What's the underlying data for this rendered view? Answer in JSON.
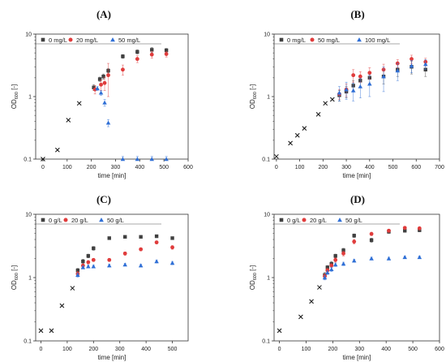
{
  "chart_data": [
    {
      "type": "scatter",
      "panel_label": "(A)",
      "xlabel": "time [min]",
      "ylabel": "OD",
      "ylabel_sub": "600",
      "ylabel_suffix": " [-]",
      "xlim": [
        -30,
        600
      ],
      "ylim": [
        0.1,
        10
      ],
      "yscale": "log",
      "xticks": [
        0,
        100,
        200,
        300,
        400,
        500,
        600
      ],
      "yticks": [
        0.1,
        1,
        10
      ],
      "ytick_labels": [
        "0.1",
        "1",
        "10"
      ],
      "legend_placement": "top-left",
      "colors": {
        "s0": "#404040",
        "s1": "#e03c3c",
        "s2": "#2f6fd6",
        "pre": "#111111"
      },
      "preculture": {
        "x": [
          0,
          60,
          105,
          150
        ],
        "y": [
          0.1,
          0.14,
          0.42,
          0.78
        ]
      },
      "series": [
        {
          "name": "0 mg/L",
          "x": [
            210,
            235,
            250,
            270,
            330,
            390,
            450,
            510
          ],
          "y": [
            1.4,
            1.9,
            2.1,
            2.6,
            4.4,
            5.2,
            5.6,
            5.5
          ],
          "err": [
            0.15,
            0.15,
            0.2,
            0.2,
            0.3,
            0.4,
            0.5,
            0.4
          ]
        },
        {
          "name": "20 mg/L",
          "x": [
            215,
            240,
            255,
            270,
            330,
            390,
            450,
            510
          ],
          "y": [
            1.3,
            1.55,
            1.65,
            2.2,
            2.7,
            4.0,
            4.7,
            4.8
          ],
          "err": [
            0.2,
            0.3,
            0.4,
            1.2,
            0.5,
            0.5,
            0.6,
            0.5
          ]
        },
        {
          "name": "50 mg/L",
          "x": [
            225,
            240,
            255,
            270,
            330,
            390,
            450,
            510
          ],
          "y": [
            1.35,
            1.15,
            0.8,
            0.38,
            0.1,
            0.1,
            0.1,
            0.1
          ],
          "err": [
            0.1,
            0.1,
            0.1,
            0.05,
            0.01,
            0.01,
            0.01,
            0.01
          ]
        }
      ]
    },
    {
      "type": "scatter",
      "panel_label": "(B)",
      "xlabel": "time [min]",
      "ylabel": "OD",
      "ylabel_sub": "600",
      "ylabel_suffix": " [-]",
      "xlim": [
        -10,
        700
      ],
      "ylim": [
        0.1,
        10
      ],
      "yscale": "log",
      "xticks": [
        0,
        100,
        200,
        300,
        400,
        500,
        600,
        700
      ],
      "yticks": [
        0.1,
        1,
        10
      ],
      "ytick_labels": [
        "0.1",
        "1",
        "10"
      ],
      "legend_placement": "top-left",
      "colors": {
        "s0": "#404040",
        "s1": "#e03c3c",
        "s2": "#2f6fd6",
        "pre": "#111111"
      },
      "preculture": {
        "x": [
          0,
          60,
          90,
          120,
          180,
          210,
          240
        ],
        "y": [
          0.11,
          0.18,
          0.24,
          0.31,
          0.52,
          0.78,
          0.9
        ]
      },
      "series": [
        {
          "name": "0 mg/L",
          "x": [
            270,
            300,
            330,
            360,
            400,
            460,
            520,
            580,
            640
          ],
          "y": [
            1.05,
            1.2,
            1.5,
            1.8,
            2.0,
            2.1,
            2.7,
            3.0,
            2.7
          ],
          "err": [
            0.2,
            0.25,
            0.3,
            0.4,
            0.4,
            0.5,
            0.6,
            0.7,
            0.6
          ]
        },
        {
          "name": "50 mg/L",
          "x": [
            270,
            300,
            330,
            360,
            400,
            460,
            520,
            580,
            640
          ],
          "y": [
            1.1,
            1.3,
            2.2,
            2.1,
            2.4,
            2.7,
            3.4,
            4.0,
            3.6
          ],
          "err": [
            0.2,
            0.3,
            0.5,
            0.4,
            0.5,
            0.6,
            0.5,
            0.6,
            0.5
          ]
        },
        {
          "name": "100 mg/L",
          "x": [
            270,
            300,
            330,
            360,
            400,
            460,
            520,
            580,
            640
          ],
          "y": [
            1.15,
            1.3,
            1.25,
            1.45,
            1.6,
            2.1,
            2.6,
            3.1,
            3.3
          ],
          "err": [
            0.3,
            0.4,
            0.4,
            0.5,
            0.6,
            0.9,
            0.8,
            0.7,
            0.6
          ]
        }
      ]
    },
    {
      "type": "scatter",
      "panel_label": "(C)",
      "xlabel": "time [min]",
      "ylabel": "OD",
      "ylabel_sub": "600",
      "ylabel_suffix": " [-]",
      "xlim": [
        -20,
        560
      ],
      "ylim": [
        0.1,
        10
      ],
      "yscale": "log",
      "xticks": [
        0,
        100,
        200,
        300,
        400,
        500
      ],
      "yticks": [
        0.1,
        1,
        10
      ],
      "ytick_labels": [
        "0.1",
        "1",
        "10"
      ],
      "legend_placement": "top-left",
      "colors": {
        "s0": "#404040",
        "s1": "#e03c3c",
        "s2": "#2f6fd6",
        "pre": "#111111"
      },
      "preculture": {
        "x": [
          0,
          40,
          80,
          120
        ],
        "y": [
          0.145,
          0.145,
          0.36,
          0.68
        ]
      },
      "series": [
        {
          "name": "0 g/L",
          "x": [
            140,
            160,
            180,
            200,
            260,
            320,
            380,
            440,
            500
          ],
          "y": [
            1.3,
            1.8,
            2.2,
            2.9,
            4.2,
            4.4,
            4.4,
            4.5,
            4.2
          ],
          "err": [
            0.1,
            0.15,
            0.15,
            0.2,
            0.2,
            0.2,
            0.2,
            0.2,
            0.2
          ]
        },
        {
          "name": "20 g/L",
          "x": [
            140,
            160,
            180,
            200,
            260,
            320,
            380,
            440,
            500
          ],
          "y": [
            1.15,
            1.55,
            1.75,
            1.9,
            1.9,
            2.4,
            2.8,
            3.6,
            3.0
          ],
          "err": [
            0.1,
            0.1,
            0.1,
            0.1,
            0.1,
            0.15,
            0.15,
            0.2,
            0.2
          ]
        },
        {
          "name": "50 g/L",
          "x": [
            140,
            160,
            180,
            200,
            260,
            320,
            380,
            440,
            500
          ],
          "y": [
            1.1,
            1.45,
            1.5,
            1.5,
            1.55,
            1.6,
            1.55,
            1.8,
            1.7
          ],
          "err": [
            0.08,
            0.08,
            0.08,
            0.08,
            0.08,
            0.08,
            0.08,
            0.1,
            0.1
          ]
        }
      ]
    },
    {
      "type": "scatter",
      "panel_label": "(D)",
      "xlabel": "time [min]",
      "ylabel": "OD",
      "ylabel_sub": "600",
      "ylabel_suffix": " [-]",
      "xlim": [
        -20,
        600
      ],
      "ylim": [
        0.1,
        10
      ],
      "yscale": "log",
      "xticks": [
        0,
        100,
        200,
        300,
        400,
        500,
        600
      ],
      "yticks": [
        0.1,
        1,
        10
      ],
      "ytick_labels": [
        "0.1",
        "1",
        "10"
      ],
      "legend_placement": "top-left",
      "colors": {
        "s0": "#404040",
        "s1": "#e03c3c",
        "s2": "#2f6fd6",
        "pre": "#111111"
      },
      "preculture": {
        "x": [
          0,
          80,
          120,
          150
        ],
        "y": [
          0.145,
          0.24,
          0.42,
          0.7
        ]
      },
      "series": [
        {
          "name": "0 g/L",
          "x": [
            170,
            180,
            195,
            210,
            240,
            280,
            345,
            410,
            470,
            525
          ],
          "y": [
            1.1,
            1.45,
            1.65,
            2.2,
            2.7,
            4.6,
            3.9,
            5.3,
            5.5,
            5.6
          ],
          "err": [
            0.1,
            0.1,
            0.15,
            0.15,
            0.2,
            0.3,
            0.3,
            0.3,
            0.3,
            0.3
          ]
        },
        {
          "name": "20 g/L",
          "x": [
            170,
            180,
            195,
            210,
            240,
            280,
            345,
            410,
            470,
            525
          ],
          "y": [
            1.05,
            1.3,
            1.55,
            1.9,
            2.4,
            3.7,
            4.9,
            5.5,
            6.1,
            6.0
          ],
          "err": [
            0.1,
            0.1,
            0.1,
            0.15,
            0.2,
            0.3,
            0.3,
            0.3,
            0.3,
            0.3
          ]
        },
        {
          "name": "50 g/L",
          "x": [
            170,
            180,
            195,
            210,
            240,
            280,
            345,
            410,
            470,
            525
          ],
          "y": [
            1.0,
            1.2,
            1.35,
            1.6,
            1.65,
            1.85,
            2.0,
            2.0,
            2.1,
            2.1
          ],
          "err": [
            0.08,
            0.08,
            0.1,
            0.1,
            0.1,
            0.1,
            0.1,
            0.1,
            0.1,
            0.1
          ]
        }
      ]
    }
  ]
}
